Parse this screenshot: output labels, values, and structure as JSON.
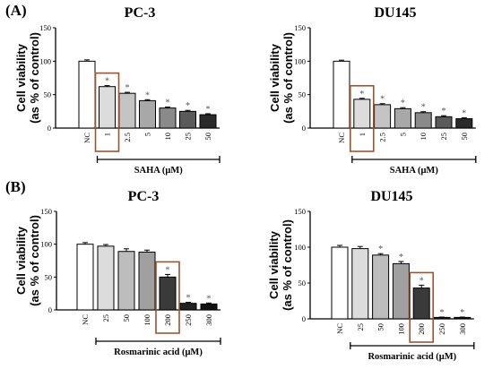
{
  "figure": {
    "panel_labels": [
      "(A)",
      "(B)"
    ]
  },
  "chart_data": [
    {
      "type": "bar",
      "panel": "(A)",
      "title": "PC-3",
      "ylabel_line1": "Cell viability",
      "ylabel_line2": "(as % of control)",
      "ylim": [
        0,
        150
      ],
      "yticks": [
        0,
        50,
        100,
        150
      ],
      "categories": [
        "NC",
        "1",
        "2.5",
        "5",
        "10",
        "25",
        "50"
      ],
      "values": [
        100,
        62,
        52,
        41,
        30,
        25,
        20
      ],
      "errors": [
        2,
        1.5,
        1.5,
        1.5,
        1.5,
        1.5,
        1.5
      ],
      "significant": [
        false,
        true,
        true,
        true,
        true,
        true,
        true
      ],
      "star": "*",
      "group_label": "SAHA (μM)",
      "group_start": 1,
      "highlight_index": 1,
      "bar_colors": [
        "#ffffff",
        "#dcdcdc",
        "#c4c4c4",
        "#a8a8a8",
        "#8a8a8a",
        "#5a5a5a",
        "#2a2a2a"
      ]
    },
    {
      "type": "bar",
      "panel": "(A)",
      "title": "DU145",
      "ylabel_line1": "Cell viability",
      "ylabel_line2": "(as % of control)",
      "ylim": [
        0,
        150
      ],
      "yticks": [
        0,
        50,
        100,
        150
      ],
      "categories": [
        "NC",
        "1",
        "2.5",
        "5",
        "10",
        "25",
        "50"
      ],
      "values": [
        100,
        43,
        35,
        29,
        23,
        17,
        14
      ],
      "errors": [
        1.5,
        1.5,
        1.5,
        1.5,
        1.5,
        1.5,
        1.5
      ],
      "significant": [
        false,
        true,
        true,
        true,
        true,
        true,
        true
      ],
      "star": "*",
      "group_label": "SAHA (μM)",
      "group_start": 1,
      "highlight_index": 1,
      "bar_colors": [
        "#ffffff",
        "#dcdcdc",
        "#c4c4c4",
        "#a8a8a8",
        "#8a8a8a",
        "#5a5a5a",
        "#2a2a2a"
      ]
    },
    {
      "type": "bar",
      "panel": "(B)",
      "title": "PC-3",
      "ylabel_line1": "Cell viability",
      "ylabel_line2": "(as % of control)",
      "ylim": [
        0,
        150
      ],
      "yticks": [
        0,
        50,
        100,
        150
      ],
      "categories": [
        "NC",
        "25",
        "50",
        "100",
        "200",
        "250",
        "300"
      ],
      "values": [
        100,
        97,
        89,
        88,
        50,
        10,
        9
      ],
      "errors": [
        2.5,
        2.5,
        4,
        3,
        4,
        1.5,
        1.5
      ],
      "significant": [
        false,
        false,
        false,
        false,
        true,
        true,
        true
      ],
      "star": "*",
      "group_label": "Rosmarinic acid (μM)",
      "group_start": 1,
      "highlight_index": 4,
      "bar_colors": [
        "#ffffff",
        "#dcdcdc",
        "#bdbdbd",
        "#a0a0a0",
        "#3a3a3a",
        "#222222",
        "#111111"
      ]
    },
    {
      "type": "bar",
      "panel": "(B)",
      "title": "DU145",
      "ylabel_line1": "Cell viability",
      "ylabel_line2": "(as % of control)",
      "ylim": [
        0,
        150
      ],
      "yticks": [
        0,
        50,
        100,
        150
      ],
      "categories": [
        "NC",
        "25",
        "50",
        "100",
        "200",
        "250",
        "300"
      ],
      "values": [
        100,
        98,
        89,
        77,
        43,
        2,
        2
      ],
      "errors": [
        2.5,
        3,
        2,
        3,
        4,
        0.5,
        0.5
      ],
      "significant": [
        false,
        false,
        true,
        true,
        true,
        true,
        true
      ],
      "star": "*",
      "group_label": "Rosmarinic acid (μM)",
      "group_start": 1,
      "highlight_index": 4,
      "bar_colors": [
        "#ffffff",
        "#dcdcdc",
        "#bdbdbd",
        "#a0a0a0",
        "#3a3a3a",
        "#222222",
        "#111111"
      ]
    }
  ]
}
